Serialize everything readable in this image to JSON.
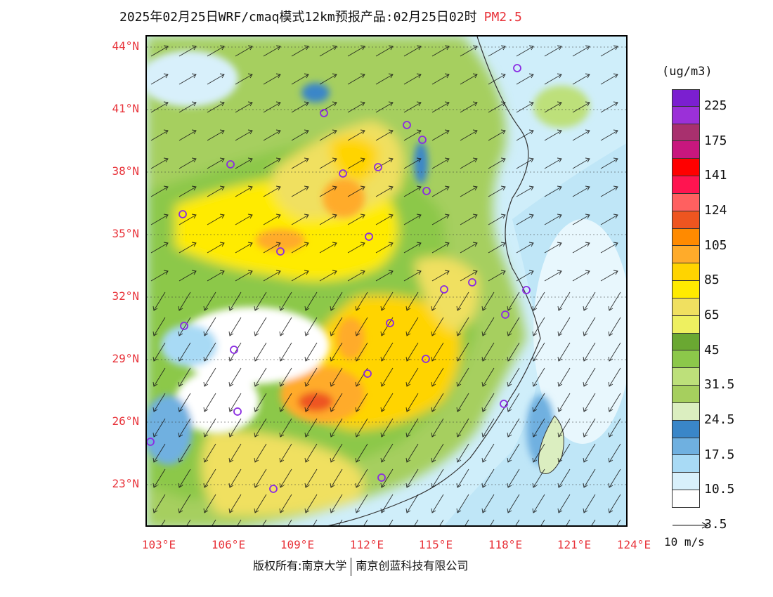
{
  "title": {
    "main": "2025年02月25日WRF/cmaq模式12km预报产品:02月25日02时",
    "variable": "PM2.5",
    "variable_color": "#e8333a"
  },
  "axes": {
    "latitude_labels": [
      "44°N",
      "41°N",
      "38°N",
      "35°N",
      "32°N",
      "29°N",
      "26°N",
      "23°N"
    ],
    "longitude_labels": [
      "103°E",
      "106°E",
      "109°E",
      "112°E",
      "115°E",
      "118°E",
      "121°E",
      "124°E"
    ],
    "label_color": "#e8333a"
  },
  "legend": {
    "units": "(ug/m3)",
    "colors": [
      "#7b1fd0",
      "#9b30d8",
      "#a8306e",
      "#c8177e",
      "#ff0000",
      "#ff1450",
      "#ff6060",
      "#ee5520",
      "#ff8a00",
      "#ffab2a",
      "#ffd400",
      "#ffeb00",
      "#f0e060",
      "#eef060",
      "#6aa832",
      "#8cc84a",
      "#bde07a",
      "#a6cf5e",
      "#dbeec0",
      "#3a86c8",
      "#6fb0e0",
      "#a8daf5",
      "#d8f0fb",
      "#ffffff"
    ],
    "labels": [
      "225",
      "175",
      "141",
      "124",
      "105",
      "85",
      "65",
      "45",
      "31.5",
      "24.5",
      "17.5",
      "10.5",
      "3.5"
    ]
  },
  "wind_reference": {
    "label": "10 m/s"
  },
  "footer": {
    "copyright_left": "版权所有:南京大学",
    "copyright_right": "南京创蓝科技有限公司"
  }
}
